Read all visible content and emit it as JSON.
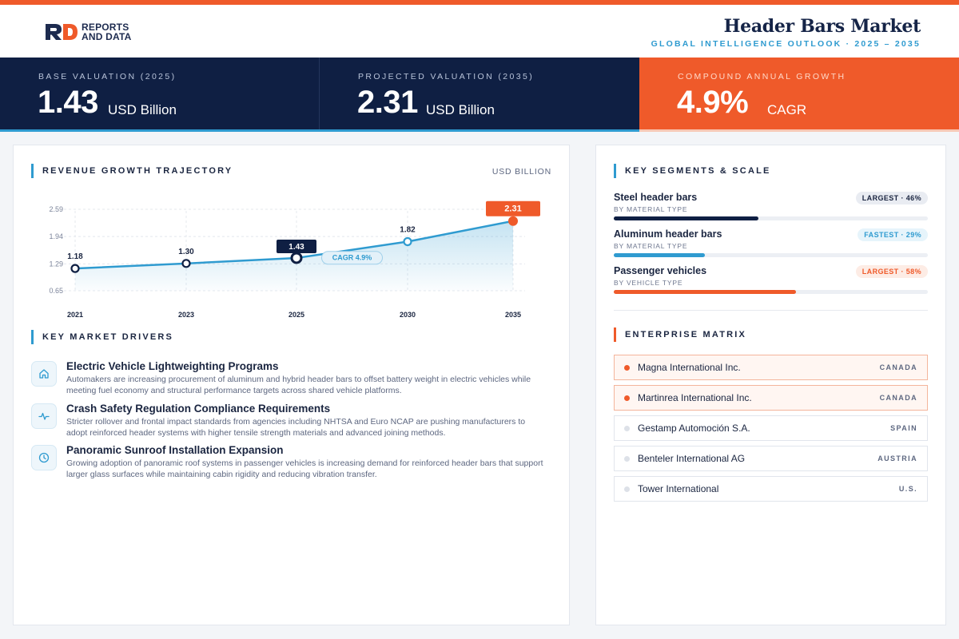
{
  "brand": {
    "line1": "REPORTS",
    "line2": "AND DATA"
  },
  "header": {
    "title": "Header Bars Market",
    "subtitle": "GLOBAL INTELLIGENCE OUTLOOK  ·  2025 – 2035"
  },
  "colors": {
    "navy": "#0f1f43",
    "orange": "#ef5a2a",
    "blue": "#2f9bd0"
  },
  "kpis": [
    {
      "label": "BASE VALUATION (2025)",
      "value": "1.43",
      "unit": "USD Billion"
    },
    {
      "label": "PROJECTED VALUATION (2035)",
      "value": "2.31",
      "unit": "USD Billion"
    },
    {
      "label": "COMPOUND ANNUAL GROWTH",
      "value": "4.9%",
      "unit": "CAGR"
    }
  ],
  "revenue": {
    "title": "REVENUE GROWTH TRAJECTORY",
    "unit": "USD BILLION"
  },
  "chart_data": {
    "type": "line",
    "x": [
      "2021",
      "2023",
      "2025",
      "2030",
      "2035"
    ],
    "values": [
      1.18,
      1.3,
      1.43,
      1.82,
      2.31
    ],
    "value_labels": [
      "1.18",
      "1.30",
      "1.43",
      "1.82",
      "2.31"
    ],
    "y_ticks": [
      "2.59",
      "1.94",
      "1.29",
      "0.65"
    ],
    "ylim": [
      0.65,
      2.59
    ],
    "annotation": "CAGR 4.9%",
    "highlight_base_index": 2,
    "highlight_end_index": 4,
    "grid": true
  },
  "drivers": {
    "title": "KEY MARKET DRIVERS",
    "items": [
      {
        "icon": "home-icon",
        "title": "Electric Vehicle Lightweighting Programs",
        "desc": "Automakers are increasing procurement of aluminum and hybrid header bars to offset battery weight in electric vehicles while meeting fuel economy and structural performance targets across shared vehicle platforms."
      },
      {
        "icon": "pulse-icon",
        "title": "Crash Safety Regulation Compliance Requirements",
        "desc": "Stricter rollover and frontal impact standards from agencies including NHTSA and Euro NCAP are pushing manufacturers to adopt reinforced header systems with higher tensile strength materials and advanced joining methods."
      },
      {
        "icon": "clock-icon",
        "title": "Panoramic Sunroof Installation Expansion",
        "desc": "Growing adoption of panoramic roof systems in passenger vehicles is increasing demand for reinforced header bars that support larger glass surfaces while maintaining cabin rigidity and reducing vibration transfer."
      }
    ]
  },
  "segments": {
    "title": "KEY SEGMENTS & SCALE",
    "items": [
      {
        "name": "Steel header bars",
        "sub": "BY MATERIAL TYPE",
        "badge": "LARGEST · 46%",
        "share": 0.46,
        "style": "navy"
      },
      {
        "name": "Aluminum header bars",
        "sub": "BY MATERIAL TYPE",
        "badge": "FASTEST · 29%",
        "share": 0.29,
        "style": "blue"
      },
      {
        "name": "Passenger vehicles",
        "sub": "BY VEHICLE TYPE",
        "badge": "LARGEST · 58%",
        "share": 0.58,
        "style": "orange"
      }
    ]
  },
  "enterprise": {
    "title": "ENTERPRISE MATRIX",
    "items": [
      {
        "name": "Magna International Inc.",
        "country": "CANADA",
        "highlight": true
      },
      {
        "name": "Martinrea International Inc.",
        "country": "CANADA",
        "highlight": true
      },
      {
        "name": "Gestamp Automoción S.A.",
        "country": "SPAIN",
        "highlight": false
      },
      {
        "name": "Benteler International AG",
        "country": "AUSTRIA",
        "highlight": false
      },
      {
        "name": "Tower International",
        "country": "U.S.",
        "highlight": false
      }
    ]
  }
}
